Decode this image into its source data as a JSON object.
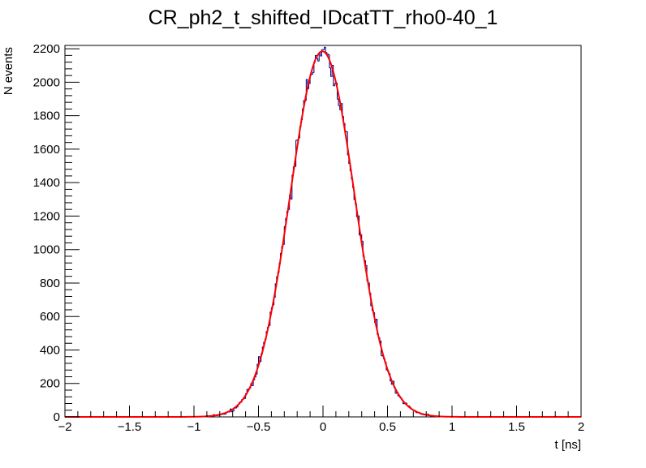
{
  "chart_data": {
    "type": "line",
    "title": "CR_ph2_t_shifted_IDcatTT_rho0-40_1",
    "xlabel": "t [ns]",
    "ylabel": "N events",
    "xlim": [
      -2,
      2
    ],
    "ylim": [
      0,
      2220
    ],
    "x_ticks": [
      -2,
      -1.5,
      -1,
      -0.5,
      0,
      0.5,
      1,
      1.5,
      2
    ],
    "x_tick_labels": [
      "−2",
      "−1.5",
      "−1",
      "−0.5",
      "0",
      "0.5",
      "1",
      "1.5",
      "2"
    ],
    "y_ticks": [
      0,
      200,
      400,
      600,
      800,
      1000,
      1200,
      1400,
      1600,
      1800,
      2000,
      2200
    ],
    "y_tick_labels": [
      "0",
      "200",
      "400",
      "600",
      "800",
      "1000",
      "1200",
      "1400",
      "1600",
      "1800",
      "2000",
      "2200"
    ],
    "histogram": {
      "bins": 400,
      "color": "#000080",
      "bin_edges_range": [
        -2,
        2
      ],
      "gaussian_approx": {
        "peak": 2185,
        "mean": -0.005,
        "sigma": 0.25
      }
    },
    "fit": {
      "function": "gaussian",
      "color": "#ff0000",
      "amplitude": 2185,
      "mean": -0.005,
      "sigma": 0.25
    },
    "grid": false,
    "legend": "none"
  }
}
